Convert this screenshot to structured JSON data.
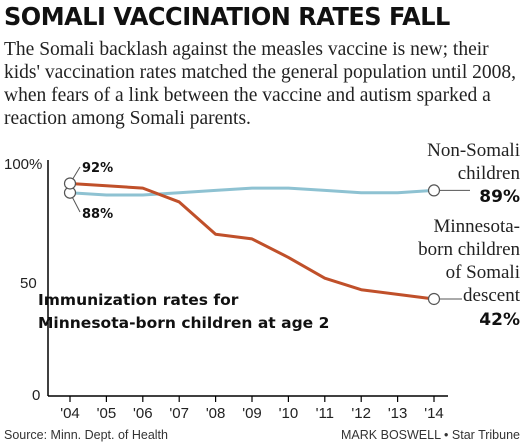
{
  "title": "SOMALI VACCINATION RATES FALL",
  "subtitle": "The Somali backlash against the measles vaccine is new; their kids' vaccination rates matched the general population until 2008, when fears of a link between the vaccine and autism sparked a reaction among Somali parents.",
  "source": "Source: Minn. Dept. of Health",
  "credit": "MARK BOSWELL • Star Tribune",
  "colors": {
    "non_somali": "#8ec2d2",
    "somali": "#c0502a",
    "axis": "#000000",
    "text": "#222222"
  },
  "chart_data": {
    "type": "line",
    "title": "Immunization rates for Minnesota-born children at age 2",
    "x": [
      "'04",
      "'05",
      "'06",
      "'07",
      "'08",
      "'09",
      "'10",
      "'11",
      "'12",
      "'13",
      "'14"
    ],
    "ylim": [
      0,
      100
    ],
    "yticks": [
      "100%",
      "50",
      "0"
    ],
    "ytick_values": [
      100,
      50,
      0
    ],
    "grid": false,
    "series": [
      {
        "key": "non_somali",
        "name": "Non-Somali children",
        "name_lines": [
          "Non-Somali",
          "children"
        ],
        "values": [
          88,
          87,
          87,
          88,
          89,
          90,
          90,
          89,
          88,
          88,
          89
        ],
        "start_label": "88%",
        "end_label": "89%"
      },
      {
        "key": "somali",
        "name": "Minnesota-born children of Somali descent",
        "name_lines": [
          "Minnesota-",
          "born children",
          "of Somali",
          "descent"
        ],
        "values": [
          92,
          91,
          90,
          84,
          70,
          68,
          60,
          51,
          46,
          44,
          42
        ],
        "start_label": "92%",
        "end_label": "42%"
      }
    ]
  }
}
